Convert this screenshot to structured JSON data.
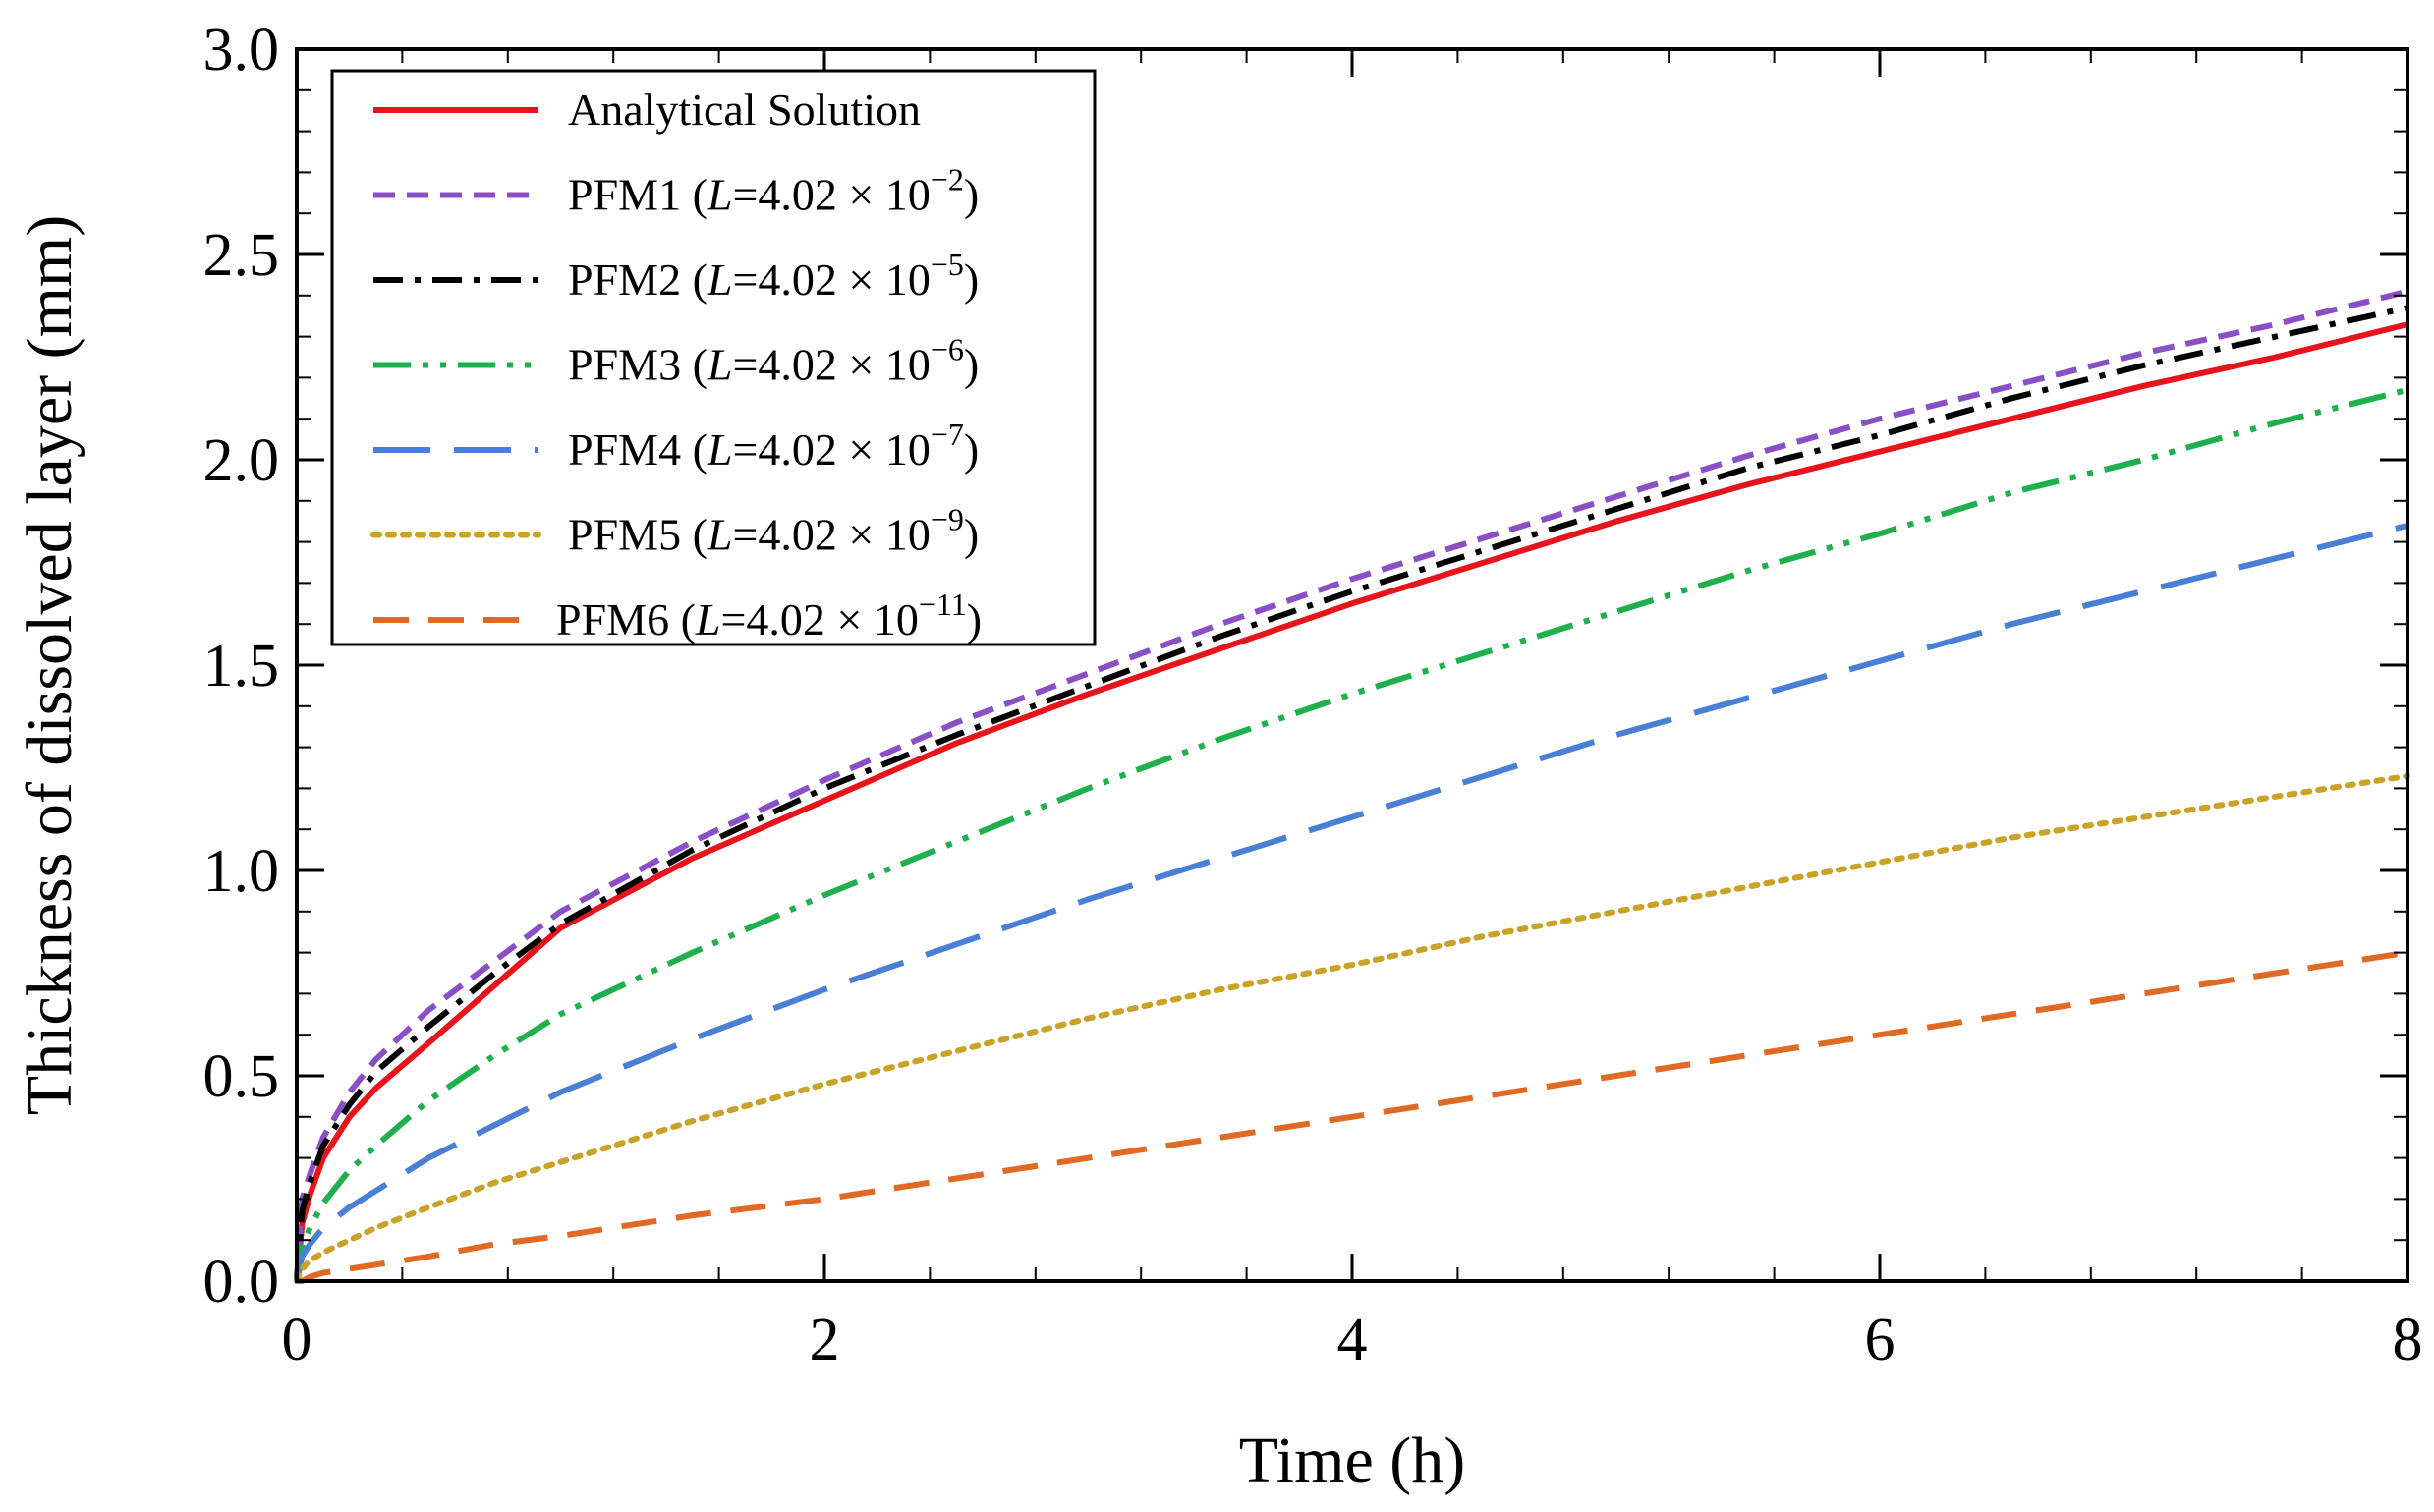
{
  "chart_data": {
    "type": "line",
    "title": "",
    "xlabel": "Time (h)",
    "ylabel": "Thickness of dissolved layer (mm)",
    "xlim": [
      0,
      8
    ],
    "ylim": [
      0,
      3.0
    ],
    "xticks": [
      "0",
      "2",
      "4",
      "6",
      "8"
    ],
    "yticks": [
      "0.0",
      "0.5",
      "1.0",
      "1.5",
      "2.0",
      "2.5",
      "3.0"
    ],
    "grid": false,
    "legend_position": "top-left",
    "series": [
      {
        "name": "Analytical Solution",
        "color": "#e8141c",
        "dash": "solid",
        "x": [
          0,
          0.02,
          0.05,
          0.1,
          0.2,
          0.3,
          0.5,
          0.75,
          1.0,
          1.5,
          2.0,
          2.5,
          3.0,
          3.5,
          4.0,
          4.5,
          5.0,
          5.5,
          6.0,
          6.5,
          7.0,
          7.5,
          8.0
        ],
        "y": [
          0.0,
          0.14,
          0.21,
          0.3,
          0.4,
          0.47,
          0.58,
          0.72,
          0.86,
          1.03,
          1.17,
          1.31,
          1.43,
          1.54,
          1.65,
          1.75,
          1.85,
          1.94,
          2.02,
          2.1,
          2.18,
          2.25,
          2.33
        ]
      },
      {
        "name": "PFM1 (L=4.02 × 10⁻²)",
        "color": "#8a4fc6",
        "dash": "short-dash",
        "x": [
          0,
          0.02,
          0.05,
          0.1,
          0.2,
          0.3,
          0.5,
          0.75,
          1.0,
          1.5,
          2.0,
          2.5,
          3.0,
          3.5,
          4.0,
          4.5,
          5.0,
          5.5,
          6.0,
          6.5,
          7.0,
          7.5,
          8.0
        ],
        "y": [
          0.0,
          0.2,
          0.26,
          0.35,
          0.46,
          0.54,
          0.66,
          0.78,
          0.9,
          1.07,
          1.22,
          1.36,
          1.48,
          1.6,
          1.71,
          1.81,
          1.91,
          2.01,
          2.1,
          2.18,
          2.26,
          2.33,
          2.41
        ]
      },
      {
        "name": "PFM2 (L=4.02 × 10⁻⁵)",
        "color": "#000000",
        "dash": "dash-dot",
        "x": [
          0,
          0.02,
          0.05,
          0.1,
          0.2,
          0.3,
          0.5,
          0.75,
          1.0,
          1.5,
          2.0,
          2.5,
          3.0,
          3.5,
          4.0,
          4.5,
          5.0,
          5.5,
          6.0,
          6.5,
          7.0,
          7.5,
          8.0
        ],
        "y": [
          0.0,
          0.17,
          0.24,
          0.33,
          0.43,
          0.51,
          0.62,
          0.75,
          0.87,
          1.05,
          1.2,
          1.33,
          1.45,
          1.57,
          1.68,
          1.78,
          1.88,
          1.98,
          2.06,
          2.15,
          2.23,
          2.3,
          2.37
        ]
      },
      {
        "name": "PFM3 (L=4.02 × 10⁻⁶)",
        "color": "#1fb04e",
        "dash": "dash-dot-dot",
        "x": [
          0,
          0.02,
          0.05,
          0.1,
          0.2,
          0.3,
          0.5,
          0.75,
          1.0,
          1.5,
          2.0,
          2.5,
          3.0,
          3.5,
          4.0,
          4.5,
          5.0,
          5.5,
          6.0,
          6.5,
          7.0,
          7.5,
          8.0
        ],
        "y": [
          0.0,
          0.08,
          0.13,
          0.19,
          0.27,
          0.33,
          0.44,
          0.55,
          0.65,
          0.8,
          0.94,
          1.07,
          1.2,
          1.32,
          1.43,
          1.53,
          1.63,
          1.73,
          1.82,
          1.92,
          2.0,
          2.09,
          2.17
        ]
      },
      {
        "name": "PFM4 (L=4.02 × 10⁻⁷)",
        "color": "#4a7fd6",
        "dash": "long-dash",
        "x": [
          0,
          0.02,
          0.05,
          0.1,
          0.2,
          0.3,
          0.5,
          0.75,
          1.0,
          1.5,
          2.0,
          2.5,
          3.0,
          3.5,
          4.0,
          4.5,
          5.0,
          5.5,
          6.0,
          6.5,
          7.0,
          7.5,
          8.0
        ],
        "y": [
          0.0,
          0.06,
          0.09,
          0.13,
          0.18,
          0.22,
          0.3,
          0.38,
          0.46,
          0.59,
          0.71,
          0.82,
          0.93,
          1.03,
          1.13,
          1.23,
          1.33,
          1.42,
          1.51,
          1.6,
          1.68,
          1.76,
          1.84
        ]
      },
      {
        "name": "PFM5 (L=4.02 × 10⁻⁹)",
        "color": "#c9a227",
        "dash": "dotted",
        "x": [
          0,
          0.02,
          0.05,
          0.1,
          0.2,
          0.3,
          0.5,
          0.75,
          1.0,
          1.5,
          2.0,
          2.5,
          3.0,
          3.5,
          4.0,
          4.5,
          5.0,
          5.5,
          6.0,
          6.5,
          7.0,
          7.5,
          8.0
        ],
        "y": [
          0.0,
          0.03,
          0.05,
          0.07,
          0.1,
          0.13,
          0.18,
          0.24,
          0.29,
          0.39,
          0.48,
          0.56,
          0.64,
          0.71,
          0.77,
          0.84,
          0.9,
          0.96,
          1.02,
          1.08,
          1.13,
          1.18,
          1.23
        ]
      },
      {
        "name": "PFM6 (L=4.02 × 10⁻¹¹)",
        "color": "#e06a23",
        "dash": "medium-dash",
        "x": [
          0,
          0.02,
          0.05,
          0.1,
          0.2,
          0.3,
          0.5,
          0.75,
          1.0,
          1.5,
          2.0,
          2.5,
          3.0,
          3.5,
          4.0,
          4.5,
          5.0,
          5.5,
          6.0,
          6.5,
          7.0,
          7.5,
          8.0
        ],
        "y": [
          0.0,
          0.0,
          0.01,
          0.02,
          0.03,
          0.04,
          0.06,
          0.09,
          0.11,
          0.16,
          0.2,
          0.25,
          0.3,
          0.35,
          0.4,
          0.45,
          0.5,
          0.55,
          0.6,
          0.65,
          0.7,
          0.75,
          0.8
        ]
      }
    ],
    "legend_entries": [
      {
        "prefix": "Analytical  Solution",
        "mantissa": "",
        "exponent": ""
      },
      {
        "prefix": "PFM1 (",
        "mantissa": "=4.02 × 10",
        "exponent": "−2"
      },
      {
        "prefix": "PFM2 (",
        "mantissa": "=4.02 × 10",
        "exponent": "−5"
      },
      {
        "prefix": "PFM3 (",
        "mantissa": "=4.02 × 10",
        "exponent": "−6"
      },
      {
        "prefix": "PFM4 (",
        "mantissa": "=4.02 × 10",
        "exponent": "−7"
      },
      {
        "prefix": "PFM5 (",
        "mantissa": "=4.02 × 10",
        "exponent": "−9"
      },
      {
        "prefix": "PFM6 (",
        "mantissa": "=4.02 × 10",
        "exponent": "−11"
      }
    ],
    "legend_variable": "L",
    "legend_close": ")"
  }
}
